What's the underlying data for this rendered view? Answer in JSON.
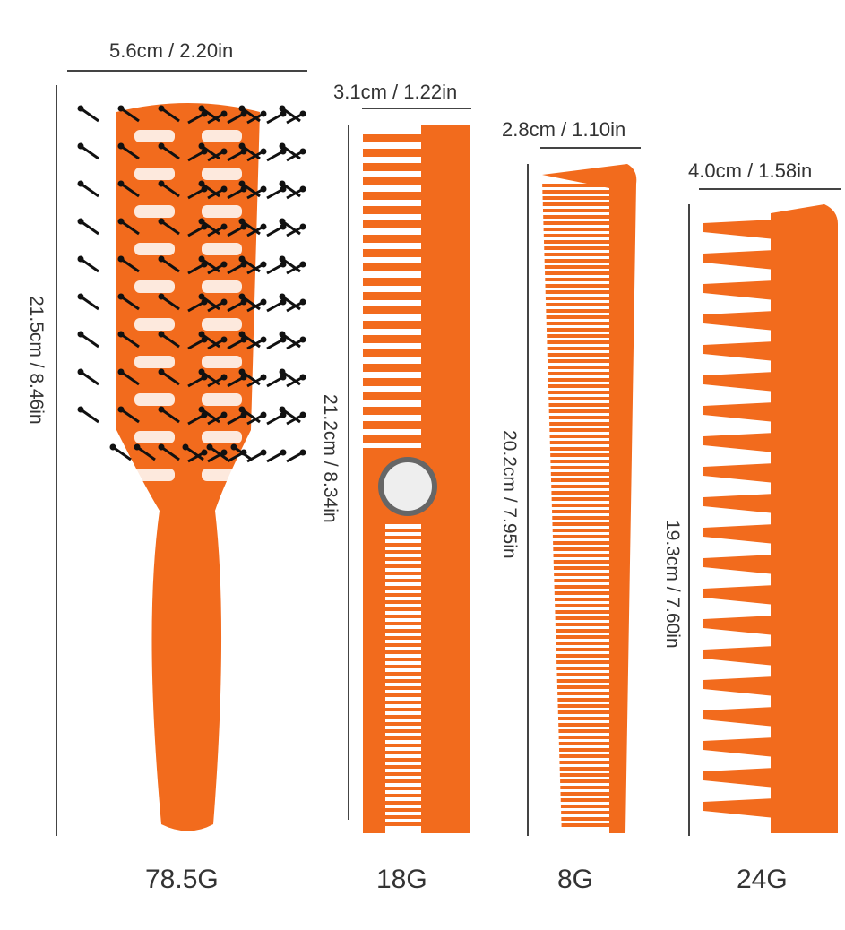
{
  "colors": {
    "product": "#f26b1d",
    "bristle": "#111111",
    "text": "#333333"
  },
  "items": [
    {
      "name": "vent-brush",
      "width": "5.6cm / 2.20in",
      "height": "21.5cm / 8.46in",
      "weight": "78.5G"
    },
    {
      "name": "folding-comb",
      "width": "3.1cm / 1.22in",
      "height": "21.2cm / 8.34in",
      "weight": "18G"
    },
    {
      "name": "cutting-comb",
      "width": "2.8cm / 1.10in",
      "height": "20.2cm / 7.95in",
      "weight": "8G"
    },
    {
      "name": "wide-tooth-comb",
      "width": "4.0cm / 1.58in",
      "height": "19.3cm / 7.60in",
      "weight": "24G"
    }
  ]
}
